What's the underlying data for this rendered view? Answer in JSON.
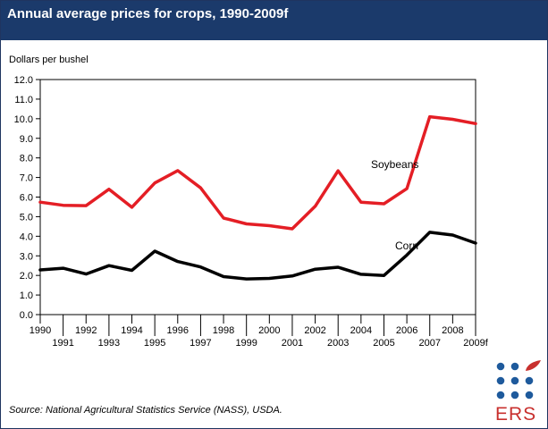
{
  "header": {
    "title": "Annual average prices for crops, 1990-2009f"
  },
  "footer": {
    "source": "Source: National Agricultural Statistics Service (NASS), USDA."
  },
  "logo": {
    "text": "ERS"
  },
  "colors": {
    "header_bg": "#1b3a6b",
    "soybeans": "#e41e25",
    "corn": "#000000",
    "logo_dots": "#1e5a9c",
    "logo_accent": "#c8302e"
  },
  "chart_data": {
    "type": "line",
    "title": "Annual average prices for crops, 1990-2009f",
    "xlabel": "",
    "ylabel": "Dollars per bushel",
    "ylim": [
      0,
      12
    ],
    "yticks": [
      "0.0",
      "1.0",
      "2.0",
      "3.0",
      "4.0",
      "5.0",
      "6.0",
      "7.0",
      "8.0",
      "9.0",
      "10.0",
      "11.0",
      "12.0"
    ],
    "categories": [
      "1990",
      "1991",
      "1992",
      "1993",
      "1994",
      "1995",
      "1996",
      "1997",
      "1998",
      "1999",
      "2000",
      "2001",
      "2002",
      "2003",
      "2004",
      "2005",
      "2006",
      "2007",
      "2008",
      "2009f"
    ],
    "series": [
      {
        "name": "Soybeans",
        "values": [
          5.74,
          5.58,
          5.56,
          6.4,
          5.48,
          6.72,
          7.35,
          6.47,
          4.93,
          4.63,
          4.54,
          4.38,
          5.53,
          7.34,
          5.74,
          5.66,
          6.43,
          10.1,
          9.97,
          9.75
        ]
      },
      {
        "name": "Corn",
        "values": [
          2.28,
          2.37,
          2.07,
          2.5,
          2.26,
          3.24,
          2.71,
          2.43,
          1.94,
          1.82,
          1.85,
          1.97,
          2.32,
          2.42,
          2.06,
          2.0,
          3.04,
          4.2,
          4.06,
          3.65
        ]
      }
    ]
  }
}
